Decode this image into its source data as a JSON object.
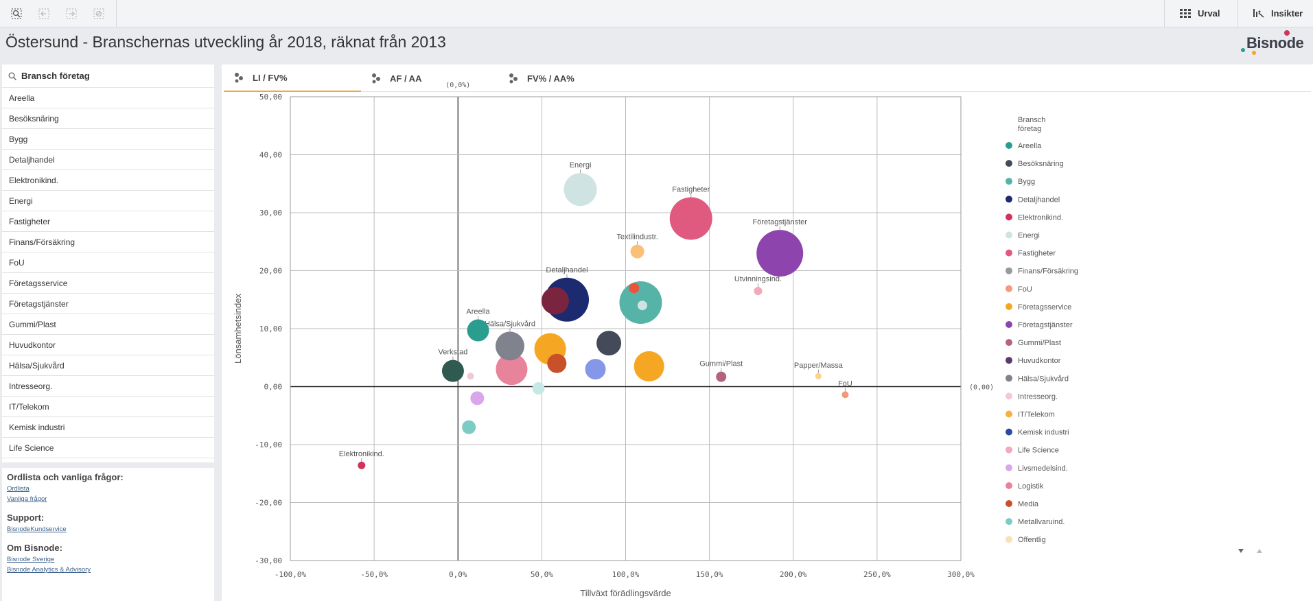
{
  "page": {
    "title": "Östersund - Branschernas utveckling år 2018, räknat från 2013",
    "logo_text": "Bisnode"
  },
  "toolbar": {
    "tools": [
      {
        "name": "smart-search-icon"
      },
      {
        "name": "step-back-icon"
      },
      {
        "name": "step-forward-icon"
      },
      {
        "name": "clear-selections-icon"
      }
    ],
    "urval_label": "Urval",
    "insikter_label": "Insikter"
  },
  "sidebar": {
    "search_placeholder": "Bransch företag",
    "items": [
      "Areella",
      "Besöksnäring",
      "Bygg",
      "Detaljhandel",
      "Elektronikind.",
      "Energi",
      "Fastigheter",
      "Finans/Försäkring",
      "FoU",
      "Företagsservice",
      "Företagstjänster",
      "Gummi/Plast",
      "Huvudkontor",
      "Hälsa/Sjukvård",
      "Intresseorg.",
      "IT/Telekom",
      "Kemisk industri",
      "Life Science"
    ]
  },
  "info": {
    "faq_heading": "Ordlista och vanliga frågor:",
    "glossary_link": "Ordlista",
    "faq_link": "Vanliga frågor",
    "support_heading": "Support:",
    "support_link": "BisnodeKundservice",
    "about_heading": "Om Bisnode:",
    "about_link_1": "Bisnode Sverige",
    "about_link_2": "Bisnode Analytics & Advisory"
  },
  "tabs": [
    {
      "label": "LI / FV%",
      "active": true
    },
    {
      "label": "AF / AA",
      "active": false
    },
    {
      "label": "FV% / AA%",
      "active": false
    }
  ],
  "chart_data": {
    "type": "scatter",
    "xlabel": "Tillväxt förädlingsvärde",
    "ylabel": "Lönsamhetsindex",
    "xlim": [
      -100,
      300
    ],
    "ylim": [
      -30,
      50
    ],
    "x_ticks": [
      "-100,0%",
      "-50,0%",
      "0,0%",
      "50,0%",
      "100,0%",
      "150,0%",
      "200,0%",
      "250,0%",
      "300,0%"
    ],
    "y_ticks": [
      "-30,00",
      "-20,00",
      "-10,00",
      "0,00",
      "10,00",
      "20,00",
      "30,00",
      "40,00",
      "50,00"
    ],
    "origin_label_x": "(0,0%)",
    "origin_label_y": "(0,00)",
    "grid": true,
    "legend_title": "Bransch företag",
    "legend_position": "right",
    "legend": [
      {
        "name": "Areella",
        "color": "#2a9d8f"
      },
      {
        "name": "Besöksnäring",
        "color": "#444a5a"
      },
      {
        "name": "Bygg",
        "color": "#55b3a8"
      },
      {
        "name": "Detaljhandel",
        "color": "#1c2a70"
      },
      {
        "name": "Elektronikind.",
        "color": "#d2335c"
      },
      {
        "name": "Energi",
        "color": "#cfe3e3"
      },
      {
        "name": "Fastigheter",
        "color": "#e05a80"
      },
      {
        "name": "Finans/Försäkring",
        "color": "#999999"
      },
      {
        "name": "FoU",
        "color": "#f49a7a"
      },
      {
        "name": "Företagsservice",
        "color": "#f5a623"
      },
      {
        "name": "Företagstjänster",
        "color": "#8e44ad"
      },
      {
        "name": "Gummi/Plast",
        "color": "#b5637c"
      },
      {
        "name": "Huvudkontor",
        "color": "#5b3a6e"
      },
      {
        "name": "Hälsa/Sjukvård",
        "color": "#80838d"
      },
      {
        "name": "Intresseorg.",
        "color": "#f2c9d3"
      },
      {
        "name": "IT/Telekom",
        "color": "#f5b041"
      },
      {
        "name": "Kemisk industri",
        "color": "#2e4a9e"
      },
      {
        "name": "Life Science",
        "color": "#f1a9bd"
      },
      {
        "name": "Livsmedelsind.",
        "color": "#d9a6ec"
      },
      {
        "name": "Logistik",
        "color": "#e8839c"
      },
      {
        "name": "Media",
        "color": "#c8502a"
      },
      {
        "name": "Metallvaruind.",
        "color": "#7ccbc4"
      },
      {
        "name": "Offentlig",
        "color": "#f7e1b5"
      }
    ],
    "points": [
      {
        "label": "Energi",
        "x": 73,
        "y": 34,
        "r": 24,
        "color": "#cfe3e3"
      },
      {
        "label": "Fastigheter",
        "x": 139,
        "y": 29,
        "r": 31,
        "color": "#e05a80"
      },
      {
        "label": "Företagstjänster",
        "x": 192,
        "y": 23,
        "r": 34,
        "color": "#8e44ad"
      },
      {
        "label": "Textilindustr.",
        "x": 107,
        "y": 23.3,
        "r": 10,
        "color": "#fbc078"
      },
      {
        "label": "Utvinningsind.",
        "x": 179,
        "y": 16.5,
        "r": 6,
        "color": "#f1a9bd"
      },
      {
        "label": "",
        "x": 109,
        "y": 14.5,
        "r": 31,
        "color": "#55b3a8"
      },
      {
        "label": "",
        "x": 105,
        "y": 17,
        "r": 7.5,
        "color": "#e8553a"
      },
      {
        "label": "",
        "x": 110,
        "y": 14,
        "r": 7,
        "color": "#cfe3e3"
      },
      {
        "label": "Detaljhandel",
        "x": 65,
        "y": 15,
        "r": 32,
        "color": "#1c2a70"
      },
      {
        "label": "",
        "x": 58,
        "y": 14.8,
        "r": 20,
        "color": "#7a2440"
      },
      {
        "label": "",
        "x": 90,
        "y": 7.5,
        "r": 18,
        "color": "#444a5a"
      },
      {
        "label": "",
        "x": 55,
        "y": 6.5,
        "r": 23,
        "color": "#f5a623"
      },
      {
        "label": "",
        "x": 59,
        "y": 4,
        "r": 14,
        "color": "#c8502a"
      },
      {
        "label": "",
        "x": 82,
        "y": 3,
        "r": 15,
        "color": "#8497e8"
      },
      {
        "label": "",
        "x": 114,
        "y": 3.5,
        "r": 22,
        "color": "#f5a623"
      },
      {
        "label": "",
        "x": 32,
        "y": 3,
        "r": 23,
        "color": "#e8839c"
      },
      {
        "label": "Hälsa/Sjukvård",
        "x": 31,
        "y": 7,
        "r": 21,
        "color": "#80838d"
      },
      {
        "label": "Areella",
        "x": 12,
        "y": 9.7,
        "r": 16,
        "color": "#2a9d8f"
      },
      {
        "label": "Verkstad",
        "x": -3,
        "y": 2.7,
        "r": 16,
        "color": "#2f5a4f"
      },
      {
        "label": "",
        "x": 7.5,
        "y": 1.8,
        "r": 5,
        "color": "#f2c9d3"
      },
      {
        "label": "",
        "x": 11.5,
        "y": -2,
        "r": 10,
        "color": "#d9a6ec"
      },
      {
        "label": "",
        "x": 48,
        "y": -0.3,
        "r": 9,
        "color": "#c6e8e6"
      },
      {
        "label": "",
        "x": 6.5,
        "y": -7,
        "r": 10,
        "color": "#7ccbc4"
      },
      {
        "label": "Gummi/Plast",
        "x": 157,
        "y": 1.7,
        "r": 7.5,
        "color": "#b5637c"
      },
      {
        "label": "Papper/Massa",
        "x": 215,
        "y": 1.8,
        "r": 4.5,
        "color": "#fbd38a"
      },
      {
        "label": "FoU",
        "x": 231,
        "y": -1.4,
        "r": 5,
        "color": "#f49a7a"
      },
      {
        "label": "Elektronikind.",
        "x": -57.5,
        "y": -13.6,
        "r": 5.5,
        "color": "#d2335c"
      }
    ]
  }
}
